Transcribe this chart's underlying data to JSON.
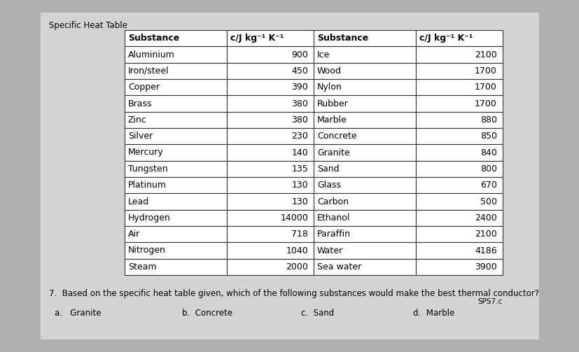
{
  "title": "Specific Heat Table",
  "col_headers": [
    "Substance",
    "c/J kg⁻¹ K⁻¹",
    "Substance",
    "c/J kg⁻¹ K⁻¹"
  ],
  "rows": [
    [
      "Aluminium",
      "900",
      "Ice",
      "2100"
    ],
    [
      "Iron/steel",
      "450",
      "Wood",
      "1700"
    ],
    [
      "Copper",
      "390",
      "Nylon",
      "1700"
    ],
    [
      "Brass",
      "380",
      "Rubber",
      "1700"
    ],
    [
      "Zinc",
      "380",
      "Marble",
      "880"
    ],
    [
      "Silver",
      "230",
      "Concrete",
      "850"
    ],
    [
      "Mercury",
      "140",
      "Granite",
      "840"
    ],
    [
      "Tungsten",
      "135",
      "Sand",
      "800"
    ],
    [
      "Platinum",
      "130",
      "Glass",
      "670"
    ],
    [
      "Lead",
      "130",
      "Carbon",
      "500"
    ],
    [
      "Hydrogen",
      "14000",
      "Ethanol",
      "2400"
    ],
    [
      "Air",
      "718",
      "Paraffin",
      "2100"
    ],
    [
      "Nitrogen",
      "1040",
      "Water",
      "4186"
    ],
    [
      "Steam",
      "2000",
      "Sea water",
      "3900"
    ]
  ],
  "question": "7.  Based on the specific heat table given, which of the following substances would make the best thermal conductor?",
  "code": "SPS7.c",
  "answers": [
    "a.   Granite",
    "b.  Concrete",
    "c.  Sand",
    "d.  Marble"
  ],
  "outer_bg": "#b0b0b0",
  "card_bg": "#d4d4d4",
  "table_bg": "#ffffff",
  "font_size_table": 9.0,
  "font_size_title": 8.5,
  "font_size_question": 8.5,
  "font_size_answer": 8.5,
  "font_size_code": 7.5
}
